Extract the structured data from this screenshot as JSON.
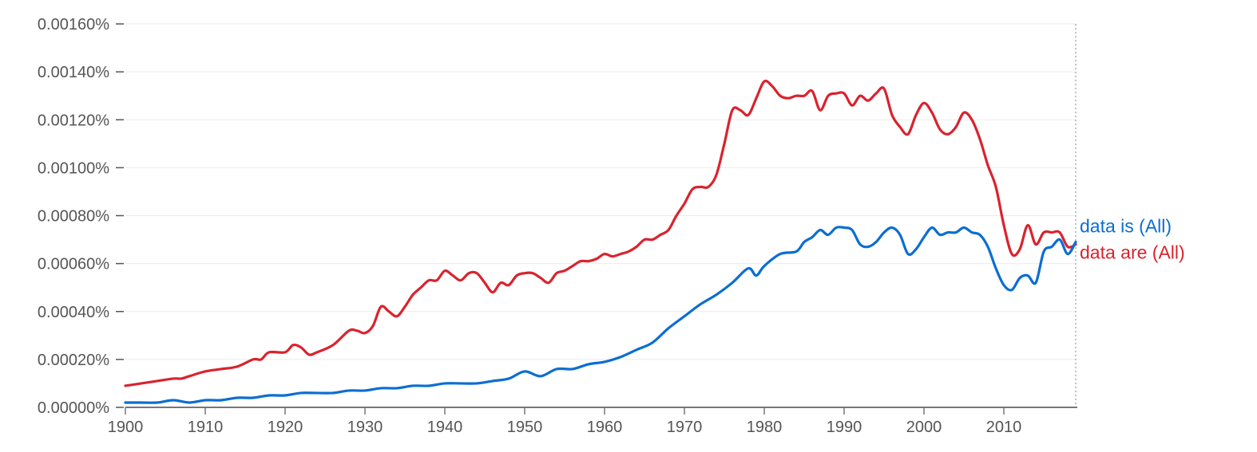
{
  "chart_data": {
    "type": "line",
    "title": "",
    "xlabel": "",
    "ylabel": "",
    "xlim": [
      1900,
      2019
    ],
    "ylim": [
      0,
      0.0016
    ],
    "grid": true,
    "legend": "inline-right",
    "x_ticks": [
      1900,
      1910,
      1920,
      1930,
      1940,
      1950,
      1960,
      1970,
      1980,
      1990,
      2000,
      2010
    ],
    "x_tick_labels": [
      "1900",
      "1910",
      "1920",
      "1930",
      "1940",
      "1950",
      "1960",
      "1970",
      "1980",
      "1990",
      "2000",
      "2010"
    ],
    "y_ticks": [
      0,
      0.0002,
      0.0004,
      0.0006,
      0.0008,
      0.001,
      0.0012,
      0.0014,
      0.0016
    ],
    "y_tick_labels": [
      "0.00000%",
      "0.00020%",
      "0.00040%",
      "0.00060%",
      "0.00080%",
      "0.00100%",
      "0.00120%",
      "0.00140%",
      "0.00160%"
    ],
    "series": [
      {
        "name": "data are (All)",
        "color": "#d9232e",
        "x": [
          1900,
          1902,
          1904,
          1906,
          1907,
          1908,
          1910,
          1912,
          1914,
          1916,
          1917,
          1918,
          1920,
          1921,
          1922,
          1923,
          1924,
          1926,
          1928,
          1929,
          1930,
          1931,
          1932,
          1933,
          1934,
          1935,
          1936,
          1937,
          1938,
          1939,
          1940,
          1941,
          1942,
          1943,
          1944,
          1945,
          1946,
          1947,
          1948,
          1949,
          1950,
          1951,
          1952,
          1953,
          1954,
          1955,
          1956,
          1957,
          1958,
          1959,
          1960,
          1961,
          1962,
          1963,
          1964,
          1965,
          1966,
          1967,
          1968,
          1969,
          1970,
          1971,
          1972,
          1973,
          1974,
          1975,
          1976,
          1977,
          1978,
          1979,
          1980,
          1981,
          1982,
          1983,
          1984,
          1985,
          1986,
          1987,
          1988,
          1989,
          1990,
          1991,
          1992,
          1993,
          1994,
          1995,
          1996,
          1997,
          1998,
          1999,
          2000,
          2001,
          2002,
          2003,
          2004,
          2005,
          2006,
          2007,
          2008,
          2009,
          2010,
          2011,
          2012,
          2013,
          2014,
          2015,
          2016,
          2017,
          2018,
          2019
        ],
        "y": [
          9e-05,
          0.0001,
          0.00011,
          0.00012,
          0.00012,
          0.00013,
          0.00015,
          0.00016,
          0.00017,
          0.0002,
          0.0002,
          0.00023,
          0.00023,
          0.00026,
          0.00025,
          0.00022,
          0.00023,
          0.00026,
          0.00032,
          0.00032,
          0.00031,
          0.00034,
          0.00042,
          0.0004,
          0.00038,
          0.00042,
          0.00047,
          0.0005,
          0.00053,
          0.00053,
          0.00057,
          0.00055,
          0.00053,
          0.00056,
          0.00056,
          0.00052,
          0.00048,
          0.00052,
          0.00051,
          0.00055,
          0.00056,
          0.00056,
          0.00054,
          0.00052,
          0.00056,
          0.00057,
          0.00059,
          0.00061,
          0.00061,
          0.00062,
          0.00064,
          0.00063,
          0.00064,
          0.00065,
          0.00067,
          0.0007,
          0.0007,
          0.00072,
          0.00074,
          0.0008,
          0.00085,
          0.00091,
          0.00092,
          0.00092,
          0.00097,
          0.0011,
          0.00124,
          0.00124,
          0.00122,
          0.00129,
          0.00136,
          0.00134,
          0.0013,
          0.00129,
          0.0013,
          0.0013,
          0.00132,
          0.00124,
          0.0013,
          0.00131,
          0.00131,
          0.00126,
          0.0013,
          0.00128,
          0.00131,
          0.00133,
          0.00122,
          0.00117,
          0.00114,
          0.00122,
          0.00127,
          0.00123,
          0.00116,
          0.00114,
          0.00117,
          0.00123,
          0.0012,
          0.00112,
          0.00101,
          0.00092,
          0.00076,
          0.00064,
          0.00066,
          0.00076,
          0.00068,
          0.00073,
          0.00073,
          0.00073,
          0.00067,
          0.00068
        ]
      },
      {
        "name": "data is (All)",
        "color": "#0b6ed1",
        "x": [
          1900,
          1902,
          1904,
          1906,
          1908,
          1910,
          1912,
          1914,
          1916,
          1918,
          1920,
          1922,
          1924,
          1926,
          1928,
          1930,
          1932,
          1934,
          1936,
          1938,
          1940,
          1942,
          1944,
          1946,
          1948,
          1950,
          1952,
          1954,
          1956,
          1958,
          1960,
          1962,
          1964,
          1966,
          1968,
          1970,
          1972,
          1974,
          1976,
          1978,
          1979,
          1980,
          1982,
          1984,
          1985,
          1986,
          1987,
          1988,
          1989,
          1990,
          1991,
          1992,
          1993,
          1994,
          1995,
          1996,
          1997,
          1998,
          1999,
          2000,
          2001,
          2002,
          2003,
          2004,
          2005,
          2006,
          2007,
          2008,
          2009,
          2010,
          2011,
          2012,
          2013,
          2014,
          2015,
          2016,
          2017,
          2018,
          2019
        ],
        "y": [
          2e-05,
          2e-05,
          2e-05,
          3e-05,
          2e-05,
          3e-05,
          3e-05,
          4e-05,
          4e-05,
          5e-05,
          5e-05,
          6e-05,
          6e-05,
          6e-05,
          7e-05,
          7e-05,
          8e-05,
          8e-05,
          9e-05,
          9e-05,
          0.0001,
          0.0001,
          0.0001,
          0.00011,
          0.00012,
          0.00015,
          0.00013,
          0.00016,
          0.00016,
          0.00018,
          0.00019,
          0.00021,
          0.00024,
          0.00027,
          0.00033,
          0.00038,
          0.00043,
          0.00047,
          0.00052,
          0.00058,
          0.00055,
          0.00059,
          0.00064,
          0.00065,
          0.00069,
          0.00071,
          0.00074,
          0.00072,
          0.00075,
          0.00075,
          0.00074,
          0.00068,
          0.00067,
          0.00069,
          0.00073,
          0.00075,
          0.00072,
          0.00064,
          0.00066,
          0.00071,
          0.00075,
          0.00072,
          0.00073,
          0.00073,
          0.00075,
          0.00073,
          0.00072,
          0.00067,
          0.00058,
          0.00051,
          0.00049,
          0.00054,
          0.00055,
          0.00052,
          0.00065,
          0.00067,
          0.0007,
          0.00064,
          0.00069
        ]
      }
    ]
  }
}
